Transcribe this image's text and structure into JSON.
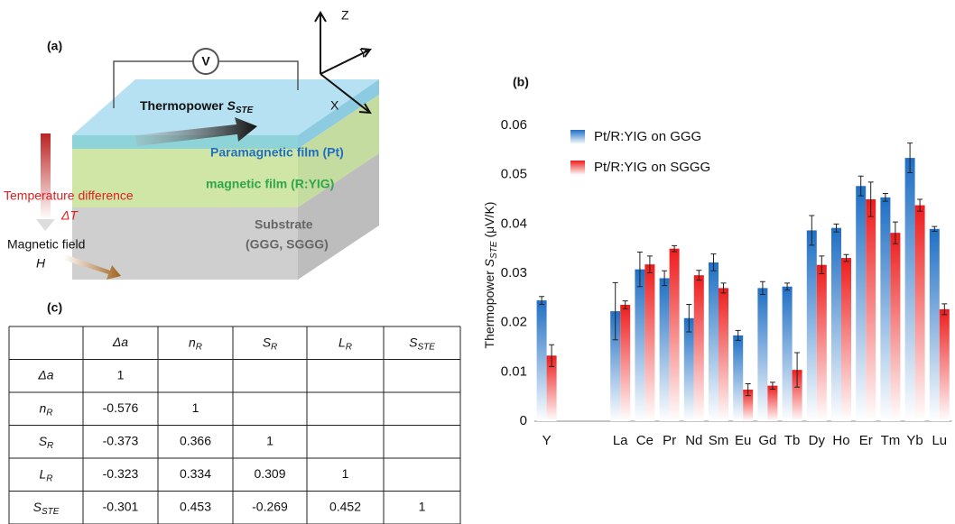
{
  "panel_a": {
    "label": "(a)",
    "voltmeter": "V",
    "axes": {
      "z": "Z",
      "y": "Y",
      "x": "X"
    },
    "thermopower": {
      "text": "Thermopower ",
      "base": "S",
      "sub": "STE"
    },
    "pt_layer": "Paramagnetic film (Pt)",
    "yig_layer": "magnetic film (R:YIG)",
    "temperature": "Temperature difference",
    "delta_t": "ΔT",
    "substrate": "Substrate",
    "substrate_kinds": "(GGG, SGGG)",
    "field": "Magnetic field",
    "field_symbol": "H"
  },
  "chart_data": {
    "type": "bar",
    "title": "(b)",
    "ylabel": {
      "text": "Thermopower ",
      "base": "S",
      "sub": "STE",
      "unit": " (μV/K)"
    },
    "categories": [
      "Y",
      null,
      null,
      "La",
      "Ce",
      "Pr",
      "Nd",
      "Sm",
      "Eu",
      "Gd",
      "Tb",
      "Dy",
      "Ho",
      "Er",
      "Tm",
      "Yb",
      "Lu"
    ],
    "series": [
      {
        "name": "Pt/R:YIG on GGG",
        "color": "#1f6fc4",
        "values": [
          0.0245,
          null,
          null,
          0.0223,
          0.0308,
          0.029,
          0.0209,
          0.0322,
          0.0174,
          0.027,
          0.0273,
          0.0387,
          0.0392,
          0.0477,
          0.0454,
          0.0534,
          0.039
        ],
        "errors": [
          0.0008,
          null,
          null,
          0.0058,
          0.0035,
          0.0015,
          0.0028,
          0.0017,
          0.001,
          0.0013,
          0.0007,
          0.003,
          0.0008,
          0.002,
          0.0008,
          0.003,
          0.0005
        ]
      },
      {
        "name": "Pt/R:YIG on SGGG",
        "color": "#ee1c1c",
        "values": [
          0.0133,
          null,
          null,
          0.0236,
          0.0318,
          0.035,
          0.0296,
          0.027,
          0.0064,
          0.0072,
          0.0104,
          0.0317,
          0.0331,
          0.045,
          0.0382,
          0.0438,
          0.0227
        ],
        "errors": [
          0.0022,
          null,
          null,
          0.0008,
          0.0017,
          0.0006,
          0.001,
          0.001,
          0.0012,
          0.0007,
          0.0035,
          0.0018,
          0.0007,
          0.0035,
          0.0022,
          0.0012,
          0.0011
        ]
      }
    ],
    "ylim": [
      0,
      0.06
    ],
    "yticks": [
      0,
      0.01,
      0.02,
      0.03,
      0.04,
      0.05,
      0.06
    ],
    "grid": false,
    "legend": "top-left"
  },
  "table": {
    "label": "(c)",
    "header": [
      "Δa",
      {
        "base": "n",
        "sub": "R"
      },
      {
        "base": "S",
        "sub": "R"
      },
      {
        "base": "L",
        "sub": "R"
      },
      {
        "base": "S",
        "sub": "STE"
      }
    ],
    "rows": [
      {
        "label": "Δa",
        "values": [
          1
        ]
      },
      {
        "label": {
          "base": "n",
          "sub": "R"
        },
        "values": [
          -0.576,
          1
        ]
      },
      {
        "label": {
          "base": "S",
          "sub": "R"
        },
        "values": [
          -0.373,
          0.366,
          1
        ]
      },
      {
        "label": {
          "base": "L",
          "sub": "R"
        },
        "values": [
          -0.323,
          0.334,
          0.309,
          1
        ]
      },
      {
        "label": {
          "base": "S",
          "sub": "STE"
        },
        "values": [
          -0.301,
          0.453,
          -0.269,
          0.452,
          1
        ]
      }
    ]
  }
}
